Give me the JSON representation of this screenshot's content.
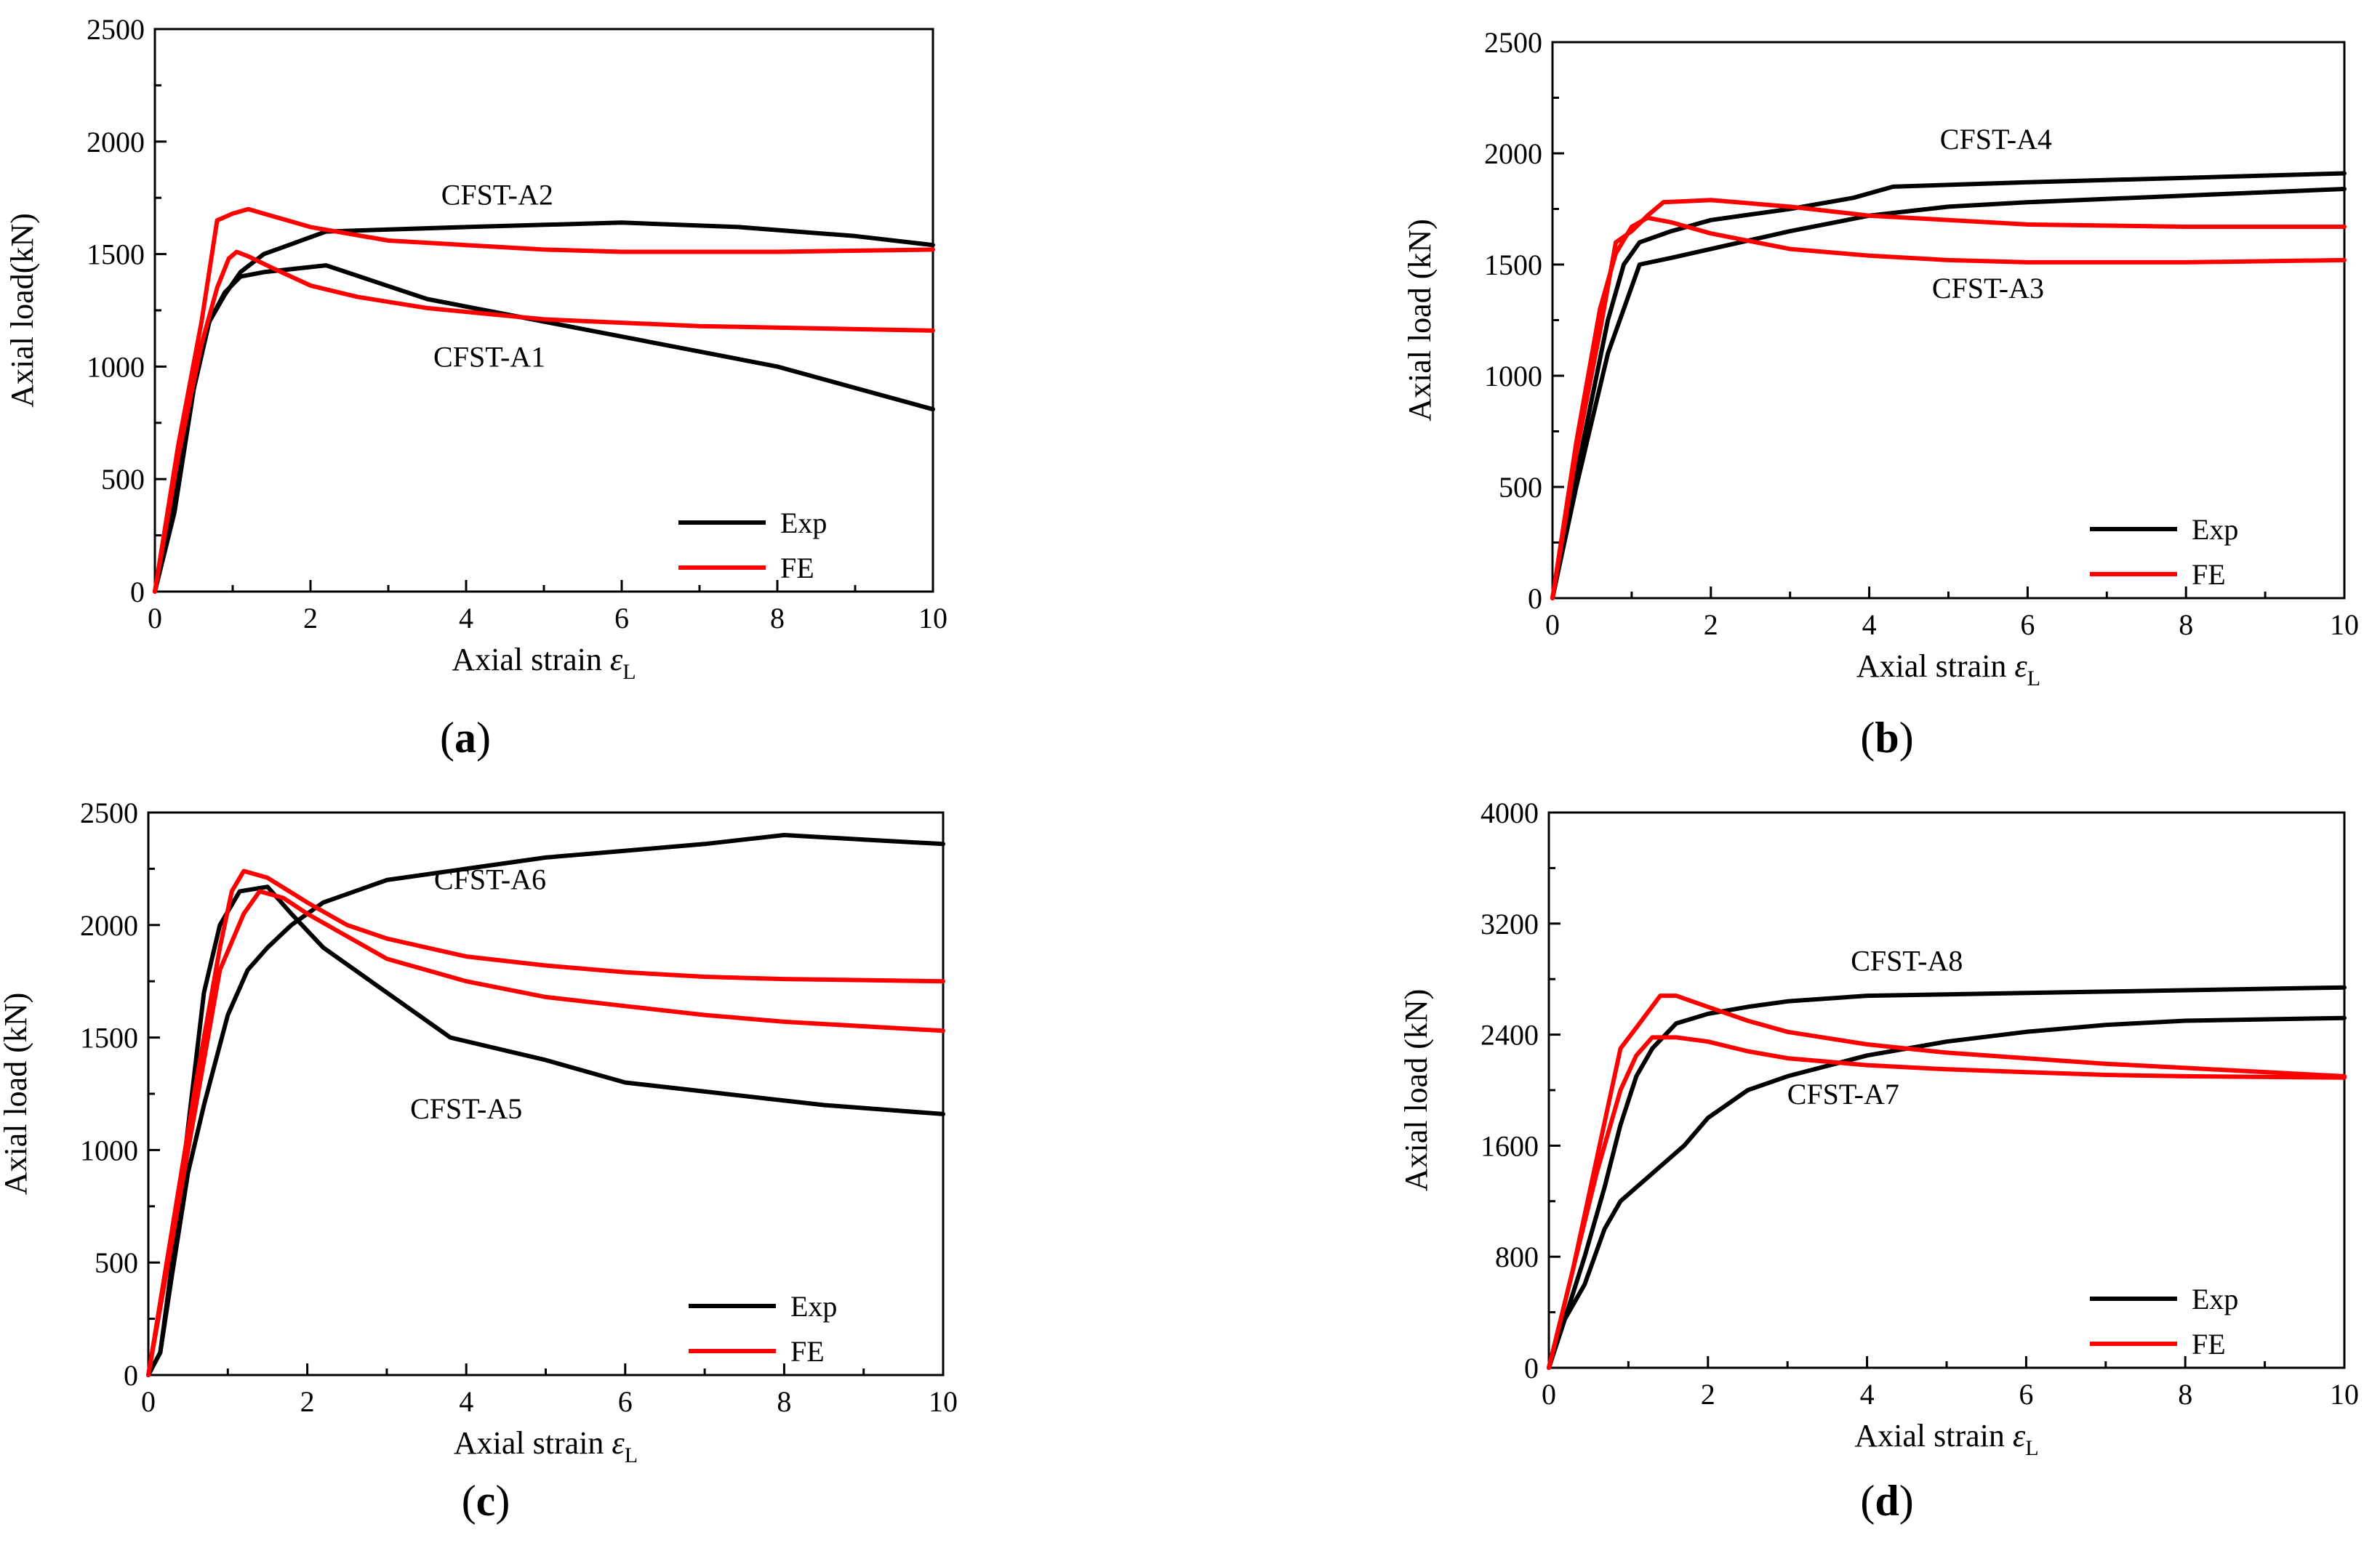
{
  "chart_data": [
    {
      "id": "a",
      "type": "line",
      "panel_label": "a",
      "xlabel_text": "Axial strain ",
      "xlabel_symbol": "ε",
      "xlabel_sub": "L",
      "ylabel": "Axial load(kN)",
      "xlim": [
        0,
        10
      ],
      "ylim": [
        0,
        2500
      ],
      "xticks": [
        0,
        2,
        4,
        6,
        8,
        10
      ],
      "yticks": [
        0,
        500,
        1000,
        1500,
        2000,
        2500
      ],
      "legend": {
        "position": "bottom-right",
        "entries": [
          {
            "name": "Exp",
            "color": "#000000"
          },
          {
            "name": "FE",
            "color": "#ff0000"
          }
        ]
      },
      "annotations": [
        {
          "text": "CFST-A2",
          "x": 4.4,
          "y": 1720
        },
        {
          "text": "CFST-A1",
          "x": 4.3,
          "y": 1000
        }
      ],
      "series": [
        {
          "name": "Exp CFST-A1",
          "color": "#000000",
          "x": [
            0,
            0.25,
            0.5,
            0.7,
            0.9,
            1.1,
            1.4,
            2.2,
            3.5,
            5,
            6.5,
            8,
            10
          ],
          "y": [
            0,
            350,
            900,
            1200,
            1330,
            1400,
            1420,
            1450,
            1300,
            1200,
            1100,
            1000,
            810
          ]
        },
        {
          "name": "Exp CFST-A2",
          "color": "#000000",
          "x": [
            0,
            0.25,
            0.5,
            0.7,
            0.9,
            1.1,
            1.4,
            2.2,
            4,
            6,
            7.5,
            9,
            10
          ],
          "y": [
            0,
            400,
            950,
            1200,
            1320,
            1420,
            1500,
            1600,
            1620,
            1640,
            1620,
            1580,
            1540
          ]
        },
        {
          "name": "FE CFST-A1",
          "color": "#ff0000",
          "x": [
            0,
            0.3,
            0.6,
            0.8,
            0.95,
            1.05,
            1.2,
            1.5,
            2,
            2.6,
            3.5,
            5,
            7,
            10
          ],
          "y": [
            0,
            600,
            1100,
            1350,
            1480,
            1510,
            1490,
            1440,
            1360,
            1310,
            1260,
            1210,
            1180,
            1160
          ]
        },
        {
          "name": "FE CFST-A2",
          "color": "#ff0000",
          "x": [
            0,
            0.3,
            0.6,
            0.8,
            1.0,
            1.2,
            1.5,
            2,
            3,
            4,
            5,
            6,
            8,
            10
          ],
          "y": [
            0,
            650,
            1200,
            1650,
            1680,
            1700,
            1670,
            1620,
            1560,
            1540,
            1520,
            1510,
            1510,
            1520
          ]
        }
      ]
    },
    {
      "id": "b",
      "type": "line",
      "panel_label": "b",
      "xlabel_text": "Axial strain ",
      "xlabel_symbol": "ε",
      "xlabel_sub": "L",
      "ylabel": "Axial load (kN)",
      "xlim": [
        0,
        10
      ],
      "ylim": [
        0,
        2500
      ],
      "xticks": [
        0,
        2,
        4,
        6,
        8,
        10
      ],
      "yticks": [
        0,
        500,
        1000,
        1500,
        2000,
        2500
      ],
      "legend": {
        "position": "bottom-right",
        "entries": [
          {
            "name": "Exp",
            "color": "#000000"
          },
          {
            "name": "FE",
            "color": "#ff0000"
          }
        ]
      },
      "annotations": [
        {
          "text": "CFST-A4",
          "x": 5.6,
          "y": 2020
        },
        {
          "text": "CFST-A3",
          "x": 5.5,
          "y": 1350
        }
      ],
      "series": [
        {
          "name": "Exp CFST-A3",
          "color": "#000000",
          "x": [
            0,
            0.3,
            0.5,
            0.7,
            0.9,
            1.1,
            1.5,
            2,
            3,
            4,
            5,
            6,
            8,
            10
          ],
          "y": [
            0,
            500,
            800,
            1100,
            1300,
            1500,
            1530,
            1570,
            1650,
            1720,
            1760,
            1780,
            1810,
            1840
          ]
        },
        {
          "name": "Exp CFST-A4",
          "color": "#000000",
          "x": [
            0,
            0.3,
            0.5,
            0.7,
            0.9,
            1.1,
            1.5,
            2,
            3,
            3.8,
            4.3,
            6,
            8,
            10
          ],
          "y": [
            0,
            550,
            900,
            1250,
            1500,
            1600,
            1650,
            1700,
            1750,
            1800,
            1850,
            1870,
            1890,
            1910
          ]
        },
        {
          "name": "FE CFST-A3",
          "color": "#ff0000",
          "x": [
            0,
            0.3,
            0.6,
            0.8,
            1.0,
            1.2,
            1.5,
            2,
            3,
            4,
            5,
            6,
            8,
            10
          ],
          "y": [
            0,
            700,
            1300,
            1550,
            1670,
            1710,
            1690,
            1640,
            1570,
            1540,
            1520,
            1510,
            1510,
            1520
          ]
        },
        {
          "name": "FE CFST-A4",
          "color": "#ff0000",
          "x": [
            0,
            0.3,
            0.6,
            0.8,
            1.0,
            1.2,
            1.4,
            2,
            3,
            4,
            5,
            6,
            8,
            10
          ],
          "y": [
            0,
            650,
            1200,
            1600,
            1650,
            1720,
            1780,
            1790,
            1760,
            1720,
            1700,
            1680,
            1670,
            1670
          ]
        }
      ]
    },
    {
      "id": "c",
      "type": "line",
      "panel_label": "c",
      "xlabel_text": "Axial strain ",
      "xlabel_symbol": "ε",
      "xlabel_sub": "L",
      "ylabel": "Axial load (kN)",
      "xlim": [
        0,
        10
      ],
      "ylim": [
        0,
        2500
      ],
      "xticks": [
        0,
        2,
        4,
        6,
        8,
        10
      ],
      "yticks": [
        0,
        500,
        1000,
        1500,
        2000,
        2500
      ],
      "legend": {
        "position": "bottom-right",
        "entries": [
          {
            "name": "Exp",
            "color": "#000000"
          },
          {
            "name": "FE",
            "color": "#ff0000"
          }
        ]
      },
      "annotations": [
        {
          "text": "CFST-A6",
          "x": 4.3,
          "y": 2160
        },
        {
          "text": "CFST-A5",
          "x": 4.0,
          "y": 1140
        }
      ],
      "series": [
        {
          "name": "Exp CFST-A5",
          "color": "#000000",
          "x": [
            0,
            0.15,
            0.3,
            0.5,
            0.7,
            0.9,
            1.15,
            1.5,
            1.8,
            2.2,
            3,
            3.8,
            5,
            6,
            7,
            8.5,
            10
          ],
          "y": [
            0,
            100,
            500,
            1100,
            1700,
            2000,
            2150,
            2170,
            2050,
            1900,
            1700,
            1500,
            1400,
            1300,
            1260,
            1200,
            1160
          ]
        },
        {
          "name": "Exp CFST-A6",
          "color": "#000000",
          "x": [
            0,
            0.15,
            0.3,
            0.5,
            0.7,
            1.0,
            1.25,
            1.5,
            1.8,
            2.2,
            3,
            4,
            5,
            6,
            7,
            8,
            9,
            10
          ],
          "y": [
            0,
            100,
            450,
            900,
            1200,
            1600,
            1800,
            1900,
            2000,
            2100,
            2200,
            2250,
            2300,
            2330,
            2360,
            2400,
            2380,
            2360
          ]
        },
        {
          "name": "FE CFST-A5",
          "color": "#ff0000",
          "x": [
            0,
            0.3,
            0.6,
            0.9,
            1.2,
            1.4,
            1.7,
            2,
            2.5,
            3,
            4,
            5,
            6,
            7,
            8,
            10
          ],
          "y": [
            0,
            600,
            1200,
            1800,
            2050,
            2150,
            2120,
            2050,
            1950,
            1850,
            1750,
            1680,
            1640,
            1600,
            1570,
            1530
          ]
        },
        {
          "name": "FE CFST-A6",
          "color": "#ff0000",
          "x": [
            0,
            0.3,
            0.6,
            0.9,
            1.05,
            1.2,
            1.5,
            2,
            2.5,
            3,
            4,
            5,
            6,
            7,
            8,
            10
          ],
          "y": [
            0,
            650,
            1300,
            1900,
            2150,
            2240,
            2210,
            2100,
            2000,
            1940,
            1860,
            1820,
            1790,
            1770,
            1760,
            1750
          ]
        }
      ]
    },
    {
      "id": "d",
      "type": "line",
      "panel_label": "d",
      "xlabel_text": "Axial strain ",
      "xlabel_symbol": "ε",
      "xlabel_sub": "L",
      "ylabel": "Axial load (kN)",
      "xlim": [
        0,
        10
      ],
      "ylim": [
        0,
        4000
      ],
      "xticks": [
        0,
        2,
        4,
        6,
        8,
        10
      ],
      "yticks": [
        0,
        800,
        1600,
        2400,
        3200,
        4000
      ],
      "legend": {
        "position": "bottom-right",
        "entries": [
          {
            "name": "Exp",
            "color": "#000000"
          },
          {
            "name": "FE",
            "color": "#ff0000"
          }
        ]
      },
      "annotations": [
        {
          "text": "CFST-A8",
          "x": 4.5,
          "y": 2860
        },
        {
          "text": "CFST-A7",
          "x": 3.7,
          "y": 1900
        }
      ],
      "series": [
        {
          "name": "Exp CFST-A7",
          "color": "#000000",
          "x": [
            0,
            0.2,
            0.45,
            0.7,
            0.9,
            1.0,
            1.3,
            1.7,
            2,
            2.5,
            3,
            4,
            5,
            6,
            7,
            8,
            10
          ],
          "y": [
            0,
            350,
            600,
            1000,
            1200,
            1250,
            1400,
            1600,
            1800,
            2000,
            2100,
            2250,
            2350,
            2420,
            2470,
            2500,
            2520
          ]
        },
        {
          "name": "Exp CFST-A8",
          "color": "#000000",
          "x": [
            0,
            0.2,
            0.45,
            0.7,
            0.9,
            1.1,
            1.3,
            1.6,
            2,
            2.5,
            3,
            4,
            5,
            6,
            7,
            8,
            10
          ],
          "y": [
            0,
            350,
            800,
            1300,
            1750,
            2100,
            2300,
            2480,
            2550,
            2600,
            2640,
            2680,
            2690,
            2700,
            2710,
            2720,
            2740
          ]
        },
        {
          "name": "FE CFST-A7",
          "color": "#ff0000",
          "x": [
            0,
            0.3,
            0.6,
            0.9,
            1.1,
            1.3,
            1.6,
            2,
            2.5,
            3,
            4,
            5,
            6,
            7,
            8,
            10
          ],
          "y": [
            0,
            700,
            1400,
            2000,
            2250,
            2380,
            2380,
            2350,
            2280,
            2230,
            2180,
            2150,
            2130,
            2110,
            2100,
            2090
          ]
        },
        {
          "name": "FE CFST-A8",
          "color": "#ff0000",
          "x": [
            0,
            0.3,
            0.6,
            0.9,
            1.1,
            1.4,
            1.6,
            2,
            2.5,
            3,
            4,
            5,
            6,
            7,
            8,
            10
          ],
          "y": [
            0,
            700,
            1500,
            2300,
            2450,
            2680,
            2680,
            2600,
            2500,
            2420,
            2330,
            2270,
            2230,
            2190,
            2160,
            2100
          ]
        }
      ]
    }
  ]
}
